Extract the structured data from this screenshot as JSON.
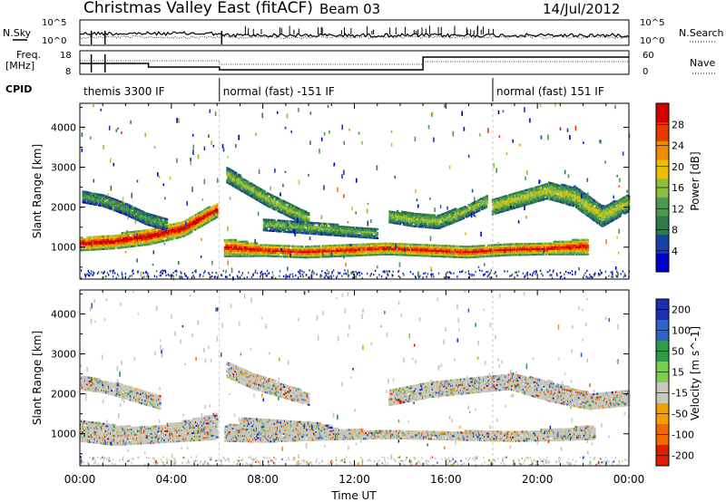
{
  "header": {
    "title": "Christmas Valley East (fitACF)",
    "beam": "Beam 03",
    "date": "14/Jul/2012"
  },
  "top_panels": {
    "nsky_label": "N.Sky",
    "nsearch_label": "N.Search",
    "freq_label_line1": "Freq.",
    "freq_label_line2": "[MHz]",
    "nave_label": "Nave",
    "cpid_label": "CPID",
    "noise_ticks": [
      "10^5",
      "10^0"
    ],
    "freq_ticks": [
      "18",
      "8"
    ],
    "nave_ticks": [
      "60",
      "0"
    ],
    "cpid_segments": [
      {
        "label": "themis 3300 IF",
        "start_hr": 0.0,
        "end_hr": 6.1
      },
      {
        "label": "normal (fast) -151 IF",
        "start_hr": 6.1,
        "end_hr": 18.05
      },
      {
        "label": "normal (fast) 151 IF",
        "start_hr": 18.05,
        "end_hr": 24.0
      }
    ]
  },
  "x_axis": {
    "label": "Time UT",
    "ticks": [
      "00:00",
      "04:00",
      "08:00",
      "12:00",
      "16:00",
      "20:00",
      "00:00"
    ],
    "range_hr": [
      0,
      24
    ]
  },
  "chart_data": [
    {
      "type": "heatmap",
      "panel": "power",
      "ylabel": "Slant Range [km]",
      "yticks": [
        1000,
        2000,
        3000,
        4000
      ],
      "ylim": [
        200,
        4600
      ],
      "xlim_hr": [
        0,
        24
      ],
      "colorbar_label": "Power [dB]",
      "colorbar_ticks": [
        4,
        8,
        12,
        16,
        20,
        24,
        28
      ],
      "colorbar_range": [
        0,
        32
      ],
      "colors": [
        "#0000cc",
        "#1a3fa8",
        "#2f7a4a",
        "#4d9a4d",
        "#8fbf3f",
        "#e8c000",
        "#f08a00",
        "#e83a00",
        "#d40000"
      ],
      "bands": [
        {
          "x": [
            0.0,
            6.0
          ],
          "y1": [
            900,
            950,
            1050,
            1250,
            1750
          ],
          "y2": [
            1250,
            1300,
            1450,
            1650,
            2100
          ],
          "level": 0.85
        },
        {
          "x": [
            0.1,
            3.8
          ],
          "y1": [
            2100,
            2000,
            1800,
            1550,
            1400
          ],
          "y2": [
            2400,
            2300,
            2100,
            1850,
            1700
          ],
          "level": 0.35
        },
        {
          "x": [
            6.3,
            22.2
          ],
          "y1": [
            750,
            760,
            720,
            760,
            800,
            760,
            720,
            780,
            800,
            800
          ],
          "y2": [
            1200,
            1050,
            1000,
            1050,
            1100,
            1050,
            1000,
            1050,
            1100,
            1200
          ],
          "level": 0.8
        },
        {
          "x": [
            6.4,
            10.0
          ],
          "y1": [
            2600,
            2300,
            2000,
            1750,
            1500
          ],
          "y2": [
            3000,
            2650,
            2350,
            2100,
            1850
          ],
          "level": 0.45
        },
        {
          "x": [
            8.0,
            13.0
          ],
          "y1": [
            1400,
            1350,
            1300,
            1250,
            1200
          ],
          "y2": [
            1700,
            1650,
            1600,
            1500,
            1450
          ],
          "level": 0.4
        },
        {
          "x": [
            13.5,
            17.8
          ],
          "y1": [
            1600,
            1500,
            1450,
            1700,
            2000
          ],
          "y2": [
            1900,
            1850,
            1800,
            2000,
            2300
          ],
          "level": 0.45
        },
        {
          "x": [
            18.0,
            24.0
          ],
          "y1": [
            1800,
            2000,
            2200,
            2000,
            1500,
            1900
          ],
          "y2": [
            2200,
            2400,
            2600,
            2500,
            2000,
            2300
          ],
          "level": 0.5
        }
      ]
    },
    {
      "type": "heatmap",
      "panel": "velocity",
      "ylabel": "Slant Range [km]",
      "yticks": [
        1000,
        2000,
        3000,
        4000
      ],
      "ylim": [
        200,
        4600
      ],
      "xlim_hr": [
        0,
        24
      ],
      "colorbar_label": "Velocity [m s^-1]",
      "colorbar_ticks": [
        "200",
        "100",
        "50",
        "15",
        "-15",
        "-50",
        "-100",
        "-200"
      ],
      "colors": [
        "#1c2fb0",
        "#2e64c8",
        "#2e9a4a",
        "#7ccf4a",
        "#c8c8c0",
        "#f0a000",
        "#f06a00",
        "#e01e00"
      ],
      "ground_scatter_color": "#c8c8c0",
      "bands": [
        {
          "x": [
            0.0,
            6.0
          ],
          "y1": [
            800,
            700,
            750,
            800,
            850
          ],
          "y2": [
            1300,
            1200,
            1150,
            1300,
            1500
          ],
          "level": 0.5
        },
        {
          "x": [
            0.0,
            3.5
          ],
          "y1": [
            2100,
            2000,
            1800,
            1600
          ],
          "y2": [
            2450,
            2300,
            2150,
            1950
          ],
          "level": 0.5
        },
        {
          "x": [
            6.3,
            22.5
          ],
          "y1": [
            800,
            780,
            820,
            850,
            870,
            850,
            820,
            800,
            820,
            850
          ],
          "y2": [
            1200,
            1250,
            1150,
            1100,
            1050,
            1050,
            1050,
            1050,
            1100,
            1200
          ],
          "level": 0.5
        },
        {
          "x": [
            7.0,
            11.0
          ],
          "y1": [
            1100,
            1050,
            1000,
            950
          ],
          "y2": [
            1400,
            1350,
            1300,
            1200
          ],
          "level": 0.3
        },
        {
          "x": [
            6.4,
            10.0
          ],
          "y1": [
            2400,
            2100,
            1900,
            1700
          ],
          "y2": [
            2800,
            2500,
            2250,
            2000
          ],
          "level": 0.3
        },
        {
          "x": [
            13.5,
            24.0
          ],
          "y1": [
            1700,
            1900,
            2000,
            2100,
            1800,
            1600,
            1700
          ],
          "y2": [
            2100,
            2300,
            2400,
            2500,
            2300,
            2000,
            2100
          ],
          "level": 0.5
        }
      ]
    }
  ]
}
